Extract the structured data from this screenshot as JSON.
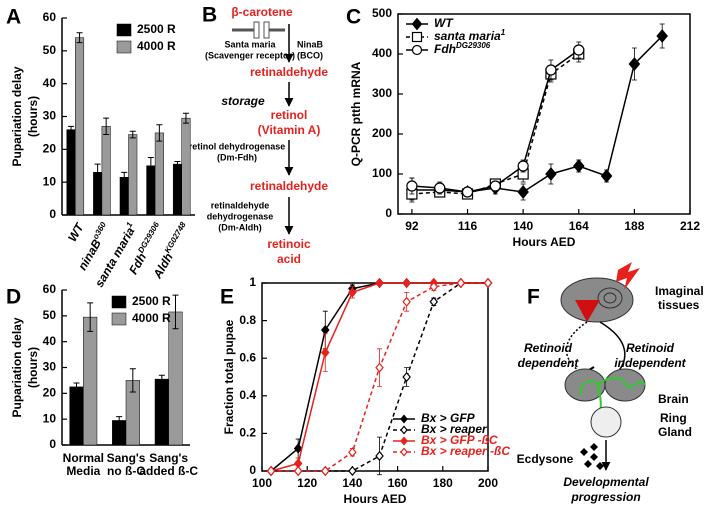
{
  "chart_data": [
    {
      "panel": "A",
      "type": "bar",
      "ylabel": [
        "Pupariation delay",
        "(hours)"
      ],
      "categories": [
        "WT",
        "ninaB",
        "santa maria",
        "Fdh",
        "Aldh"
      ],
      "category_superscripts": [
        null,
        "o360",
        "1",
        "DG29306",
        "KG02748"
      ],
      "series": [
        {
          "name": "2500 R",
          "color": "#000000",
          "values": [
            26,
            13,
            11.5,
            15,
            15.5
          ],
          "errors": [
            1,
            2.5,
            1.5,
            2.5,
            0.8
          ]
        },
        {
          "name": "4000 R",
          "color": "#9a9a9a",
          "values": [
            54,
            27,
            24.5,
            25,
            29.5
          ],
          "errors": [
            1.5,
            2.5,
            1,
            2.5,
            1.5
          ]
        }
      ],
      "ylim": [
        0,
        60
      ],
      "yticks": [
        0,
        10,
        20,
        30,
        40,
        50,
        60
      ],
      "legend": "upper right"
    },
    {
      "panel": "C",
      "type": "line",
      "ylabel": "Q-PCR ptth mRNA",
      "xlabel": "Hours AED",
      "series": [
        {
          "name": "WT",
          "name_superscript": null,
          "color": "#000000",
          "marker": "diamond",
          "filled": true,
          "dashed": false,
          "x": [
            92,
            104,
            116,
            128,
            140,
            152,
            164,
            176,
            188,
            200
          ],
          "values": [
            60,
            60,
            55,
            65,
            55,
            100,
            120,
            95,
            375,
            445
          ],
          "errors": [
            30,
            15,
            10,
            15,
            20,
            25,
            15,
            15,
            40,
            30
          ]
        },
        {
          "name": "santa maria",
          "name_superscript": "1",
          "color": "#000000",
          "marker": "square",
          "filled": false,
          "dashed": true,
          "x": [
            92,
            104,
            116,
            128,
            140,
            152,
            164
          ],
          "values": [
            50,
            55,
            50,
            75,
            100,
            350,
            400
          ],
          "errors": [
            15,
            10,
            10,
            10,
            20,
            20,
            20
          ]
        },
        {
          "name": "Fdh",
          "name_superscript": "DG29306",
          "color": "#000000",
          "marker": "circle",
          "filled": false,
          "dashed": false,
          "x": [
            92,
            104,
            116,
            128,
            140,
            152,
            164
          ],
          "values": [
            70,
            65,
            55,
            70,
            120,
            360,
            410
          ],
          "errors": [
            20,
            15,
            10,
            10,
            15,
            25,
            20
          ]
        }
      ],
      "xlim": [
        86,
        212
      ],
      "xticks": [
        92,
        116,
        140,
        164,
        188,
        212
      ],
      "ylim": [
        0,
        500
      ],
      "yticks": [
        0,
        100,
        200,
        300,
        400,
        500
      ],
      "box": true,
      "legend": "upper left"
    },
    {
      "panel": "D",
      "type": "bar",
      "ylabel": [
        "Pupariation delay",
        "(hours)"
      ],
      "categories": [
        [
          "Normal",
          "Media"
        ],
        [
          "Sang's",
          "no ß-C"
        ],
        [
          "Sang's",
          "added ß-C"
        ]
      ],
      "series": [
        {
          "name": "2500 R",
          "color": "#000000",
          "values": [
            22.5,
            9.5,
            25.5
          ],
          "errors": [
            1.5,
            1.5,
            1.5
          ]
        },
        {
          "name": "4000 R",
          "color": "#9a9a9a",
          "values": [
            49.5,
            25,
            51.5
          ],
          "errors": [
            5.5,
            4.5,
            6.5
          ]
        }
      ],
      "ylim": [
        0,
        60
      ],
      "yticks": [
        0,
        10,
        20,
        30,
        40,
        50,
        60
      ],
      "legend": "upper right"
    },
    {
      "panel": "E",
      "type": "line",
      "ylabel": "Fraction total pupae",
      "xlabel": "Hours AED",
      "series": [
        {
          "name": "Bx > GFP",
          "color": "#000000",
          "marker": "diamond",
          "filled": true,
          "dashed": false,
          "x": [
            104,
            116,
            128,
            140,
            152,
            164,
            176,
            188,
            200
          ],
          "values": [
            0,
            0.12,
            0.75,
            0.97,
            1,
            1,
            1,
            1,
            1
          ],
          "errors": [
            0,
            0.05,
            0.1,
            0.02,
            0,
            0,
            0,
            0,
            0
          ]
        },
        {
          "name": "Bx > reaper",
          "color": "#000000",
          "marker": "diamond",
          "filled": false,
          "dashed": true,
          "x": [
            104,
            116,
            128,
            140,
            152,
            164,
            176,
            188,
            200
          ],
          "values": [
            0,
            0,
            0,
            0,
            0.08,
            0.5,
            0.9,
            1,
            1
          ],
          "errors": [
            0,
            0,
            0,
            0,
            0.1,
            0.05,
            0.02,
            0,
            0
          ]
        },
        {
          "name": "Bx > GFP -ßC",
          "color": "#e8211d",
          "marker": "diamond",
          "filled": true,
          "dashed": false,
          "x": [
            104,
            116,
            128,
            140,
            152,
            164,
            176,
            188,
            200
          ],
          "values": [
            0,
            0.04,
            0.63,
            0.95,
            1,
            1,
            1,
            1,
            1
          ],
          "errors": [
            0,
            0.03,
            0.1,
            0.03,
            0,
            0,
            0,
            0,
            0
          ]
        },
        {
          "name": "Bx > reaper -ßC",
          "color": "#e8211d",
          "marker": "diamond",
          "filled": false,
          "dashed": true,
          "x": [
            104,
            116,
            128,
            140,
            152,
            164,
            176,
            188,
            200
          ],
          "values": [
            0,
            0,
            0,
            0.1,
            0.55,
            0.9,
            0.98,
            1,
            1
          ],
          "errors": [
            0,
            0,
            0,
            0.02,
            0.1,
            0.05,
            0.02,
            0,
            0
          ]
        }
      ],
      "xlim": [
        100,
        200
      ],
      "xticks": [
        100,
        120,
        140,
        160,
        180,
        200
      ],
      "ylim": [
        0,
        1
      ],
      "yticks": [
        0,
        0.2,
        0.4,
        0.6,
        0.8,
        1
      ],
      "box": true,
      "legend": "lower right"
    }
  ],
  "pathway": {
    "panel": "B",
    "start": "β-carotene",
    "receptor": [
      "Santa maria",
      "(Scavenger receptor)"
    ],
    "enzyme1": [
      "NinaB",
      "(BCO)"
    ],
    "product1": "retinaldehyde",
    "storage": "storage",
    "product2": [
      "retinol",
      "(Vitamin A)"
    ],
    "enzyme2": [
      "retinol dehydrogenase",
      "(Dm-Fdh)"
    ],
    "product3": "retinaldehyde",
    "enzyme3": [
      "retinaldehyde",
      "dehydrogenase",
      "(Dm-Aldh)"
    ],
    "product4": [
      "retinoic",
      "acid"
    ]
  },
  "model": {
    "panel": "F",
    "tissues": [
      "Imaginal",
      "tissues"
    ],
    "dependent": [
      "Retinoid",
      "dependent"
    ],
    "independent": [
      "Retinoid",
      "independent"
    ],
    "brain": "Brain",
    "ring_gland": [
      "Ring",
      "Gland"
    ],
    "hormone": "Ecdysone",
    "outcome": [
      "Developmental",
      "progression"
    ]
  }
}
